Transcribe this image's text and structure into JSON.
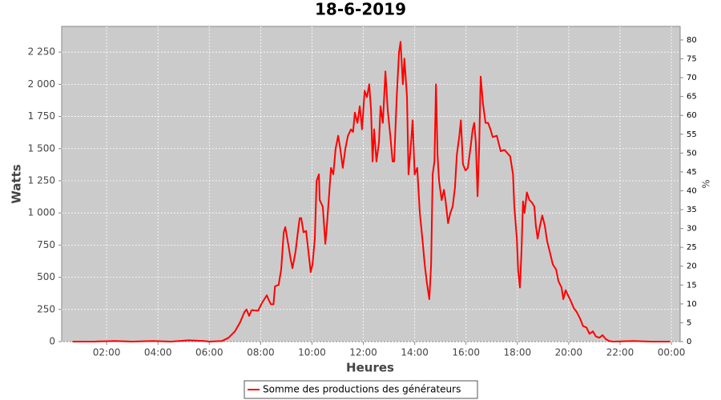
{
  "chart_data": {
    "type": "line",
    "title": "18-6-2019",
    "x_label": "Heures",
    "y_label": "Watts",
    "y2_label": "%",
    "x": [
      0.67,
      1.5,
      2.3,
      3.0,
      3.8,
      4.5,
      5.2,
      5.8,
      6.0,
      6.5,
      6.75,
      7.0,
      7.2,
      7.37,
      7.45,
      7.55,
      7.65,
      7.9,
      8.05,
      8.24,
      8.3,
      8.4,
      8.5,
      8.56,
      8.7,
      8.8,
      8.9,
      8.96,
      9.08,
      9.17,
      9.24,
      9.36,
      9.45,
      9.52,
      9.58,
      9.67,
      9.77,
      9.86,
      9.95,
      10.02,
      10.11,
      10.18,
      10.27,
      10.3,
      10.42,
      10.52,
      10.58,
      10.67,
      10.74,
      10.83,
      10.92,
      11.02,
      11.1,
      11.2,
      11.3,
      11.4,
      11.52,
      11.6,
      11.67,
      11.77,
      11.86,
      11.95,
      12.05,
      12.14,
      12.23,
      12.3,
      12.36,
      12.42,
      12.51,
      12.61,
      12.67,
      12.76,
      12.86,
      12.95,
      13.05,
      13.14,
      13.2,
      13.3,
      13.39,
      13.45,
      13.54,
      13.6,
      13.7,
      13.76,
      13.86,
      13.92,
      14.0,
      14.1,
      14.2,
      14.3,
      14.39,
      14.48,
      14.57,
      14.64,
      14.7,
      14.77,
      14.83,
      14.89,
      14.95,
      15.05,
      15.14,
      15.2,
      15.3,
      15.39,
      15.48,
      15.57,
      15.64,
      15.74,
      15.8,
      15.88,
      15.98,
      16.07,
      16.17,
      16.26,
      16.32,
      16.38,
      16.45,
      16.51,
      16.57,
      16.66,
      16.76,
      16.86,
      16.95,
      17.04,
      17.2,
      17.35,
      17.5,
      17.63,
      17.72,
      17.83,
      17.88,
      17.98,
      18.03,
      18.1,
      18.16,
      18.22,
      18.28,
      18.37,
      18.47,
      18.57,
      18.66,
      18.72,
      18.79,
      18.88,
      18.97,
      19.07,
      19.16,
      19.26,
      19.38,
      19.51,
      19.6,
      19.72,
      19.79,
      19.88,
      19.97,
      20.07,
      20.2,
      20.31,
      20.44,
      20.56,
      20.69,
      20.81,
      20.94,
      21.06,
      21.19,
      21.32,
      21.44,
      21.57,
      21.73,
      22.5,
      23.2,
      23.95
    ],
    "series": [
      {
        "name": "Somme des productions des  générateurs",
        "color": "#ff0000",
        "values": [
          0,
          0,
          5,
          0,
          5,
          0,
          10,
          5,
          0,
          5,
          30,
          80,
          150,
          230,
          250,
          200,
          245,
          240,
          300,
          360,
          330,
          290,
          290,
          430,
          440,
          560,
          850,
          890,
          750,
          640,
          570,
          700,
          850,
          960,
          960,
          850,
          860,
          700,
          540,
          600,
          800,
          1250,
          1300,
          1100,
          1050,
          760,
          900,
          1150,
          1350,
          1300,
          1500,
          1600,
          1500,
          1350,
          1500,
          1600,
          1650,
          1630,
          1780,
          1700,
          1830,
          1650,
          1950,
          1900,
          2000,
          1800,
          1400,
          1650,
          1400,
          1550,
          1830,
          1700,
          2100,
          1800,
          1600,
          1400,
          1400,
          1900,
          2250,
          2330,
          2000,
          2200,
          1900,
          1300,
          1550,
          1720,
          1300,
          1350,
          1000,
          800,
          600,
          450,
          330,
          600,
          1300,
          1400,
          2000,
          1450,
          1250,
          1100,
          1180,
          1100,
          920,
          1000,
          1050,
          1200,
          1450,
          1600,
          1720,
          1380,
          1330,
          1350,
          1500,
          1650,
          1700,
          1550,
          1130,
          1500,
          2060,
          1850,
          1700,
          1700,
          1650,
          1590,
          1600,
          1480,
          1490,
          1460,
          1440,
          1300,
          1050,
          800,
          550,
          420,
          700,
          1090,
          1000,
          1160,
          1100,
          1080,
          1050,
          900,
          800,
          900,
          980,
          900,
          780,
          700,
          600,
          560,
          470,
          420,
          330,
          400,
          360,
          320,
          260,
          230,
          180,
          120,
          110,
          60,
          80,
          40,
          30,
          50,
          20,
          5,
          0,
          5,
          0,
          0
        ]
      }
    ],
    "xlim": [
      0.25,
      24.34
    ],
    "xticks": [
      {
        "value": 2,
        "label": "02:00"
      },
      {
        "value": 4,
        "label": "04:00"
      },
      {
        "value": 6,
        "label": "06:00"
      },
      {
        "value": 8,
        "label": "08:00"
      },
      {
        "value": 10,
        "label": "10:00"
      },
      {
        "value": 12,
        "label": "12:00"
      },
      {
        "value": 14,
        "label": "14:00"
      },
      {
        "value": 16,
        "label": "16:00"
      },
      {
        "value": 18,
        "label": "18:00"
      },
      {
        "value": 20,
        "label": "20:00"
      },
      {
        "value": 22,
        "label": "22:00"
      },
      {
        "value": 24,
        "label": "00:00"
      }
    ],
    "ylim": [
      0,
      2450
    ],
    "yticks": [
      0,
      250,
      500,
      750,
      {
        "value": 1000,
        "label": "1 000"
      },
      {
        "value": 1250,
        "label": "1 250"
      },
      {
        "value": 1500,
        "label": "1 500"
      },
      {
        "value": 1750,
        "label": "1 750"
      },
      {
        "value": 2000,
        "label": "2 000"
      },
      {
        "value": 2250,
        "label": "2 250"
      }
    ],
    "y2lim": [
      0,
      83.6
    ],
    "y2ticks": [
      0,
      5,
      10,
      15,
      20,
      25,
      30,
      35,
      40,
      45,
      50,
      55,
      60,
      65,
      70,
      75,
      80
    ],
    "grid": true,
    "legend": "bottom"
  }
}
